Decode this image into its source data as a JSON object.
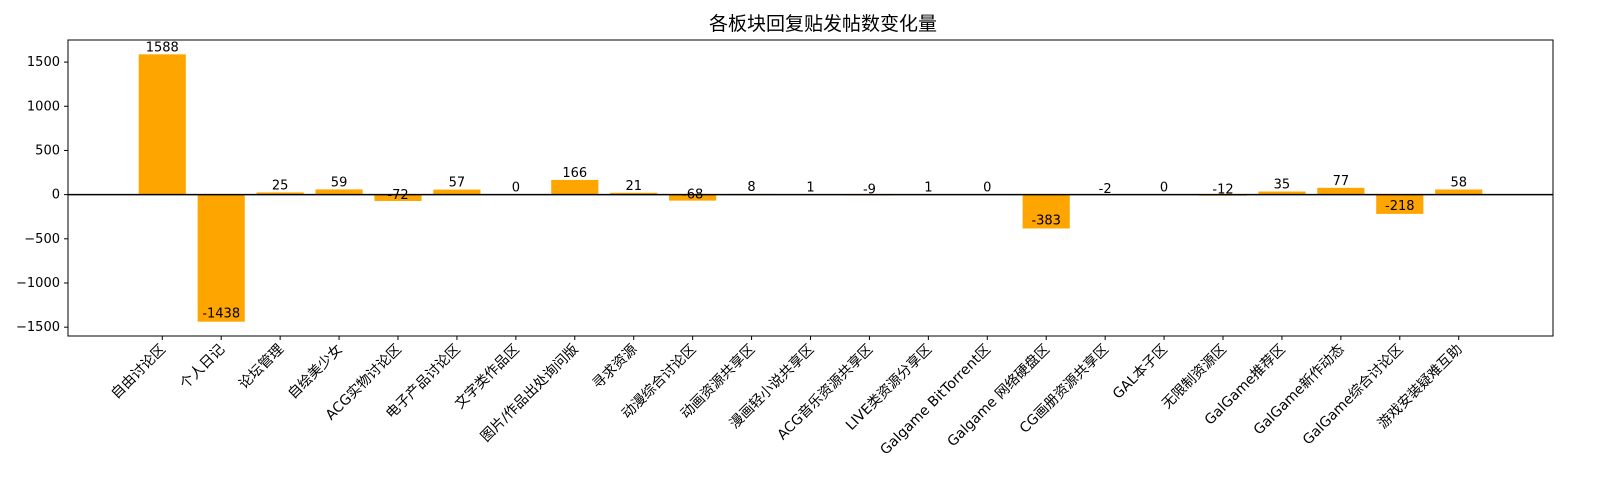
{
  "chart_data": {
    "type": "bar",
    "title": "各板块回复贴发帖数变化量",
    "xlabel": "",
    "ylabel": "",
    "ylim": [
      -1600,
      1750
    ],
    "yticks": [
      1500,
      1000,
      500,
      0,
      -500,
      -1000,
      -1500
    ],
    "ytick_labels": [
      "1500",
      "1000",
      "500",
      "0",
      "−500",
      "−1000",
      "−1500"
    ],
    "bar_color": "#FFA500",
    "zero_line": true,
    "grid": false,
    "categories": [
      "自由讨论区",
      "个人日记",
      "论坛管理",
      "自绘美少女",
      "ACG实物讨论区",
      "电子产品讨论区",
      "文字类作品区",
      "图片/作品出处询问版",
      "寻求资源",
      "动漫综合讨论区",
      "动画资源共享区",
      "漫画轻小说共享区",
      "ACG音乐资源共享区",
      "LIVE类资源分享区",
      "Galgame BitTorrent区",
      "Galgame 网络硬盘区",
      "CG画册资源共享区",
      "GAL本子区",
      "无限制资源区",
      "GalGame推荐区",
      "GalGame新作动态",
      "GalGame综合讨论区",
      "游戏安装疑难互助"
    ],
    "values": [
      1588,
      -1438,
      25,
      59,
      -72,
      57,
      0,
      166,
      21,
      -68,
      8,
      1,
      -9,
      1,
      0,
      -383,
      -2,
      0,
      -12,
      35,
      77,
      -218,
      58
    ],
    "value_labels": [
      "1588",
      "-1438",
      "25",
      "59",
      "-72",
      "57",
      "0",
      "166",
      "21",
      "-68",
      "8",
      "1",
      "-9",
      "1",
      "0",
      "-383",
      "-2",
      "0",
      "-12",
      "35",
      "77",
      "-218",
      "58"
    ]
  }
}
